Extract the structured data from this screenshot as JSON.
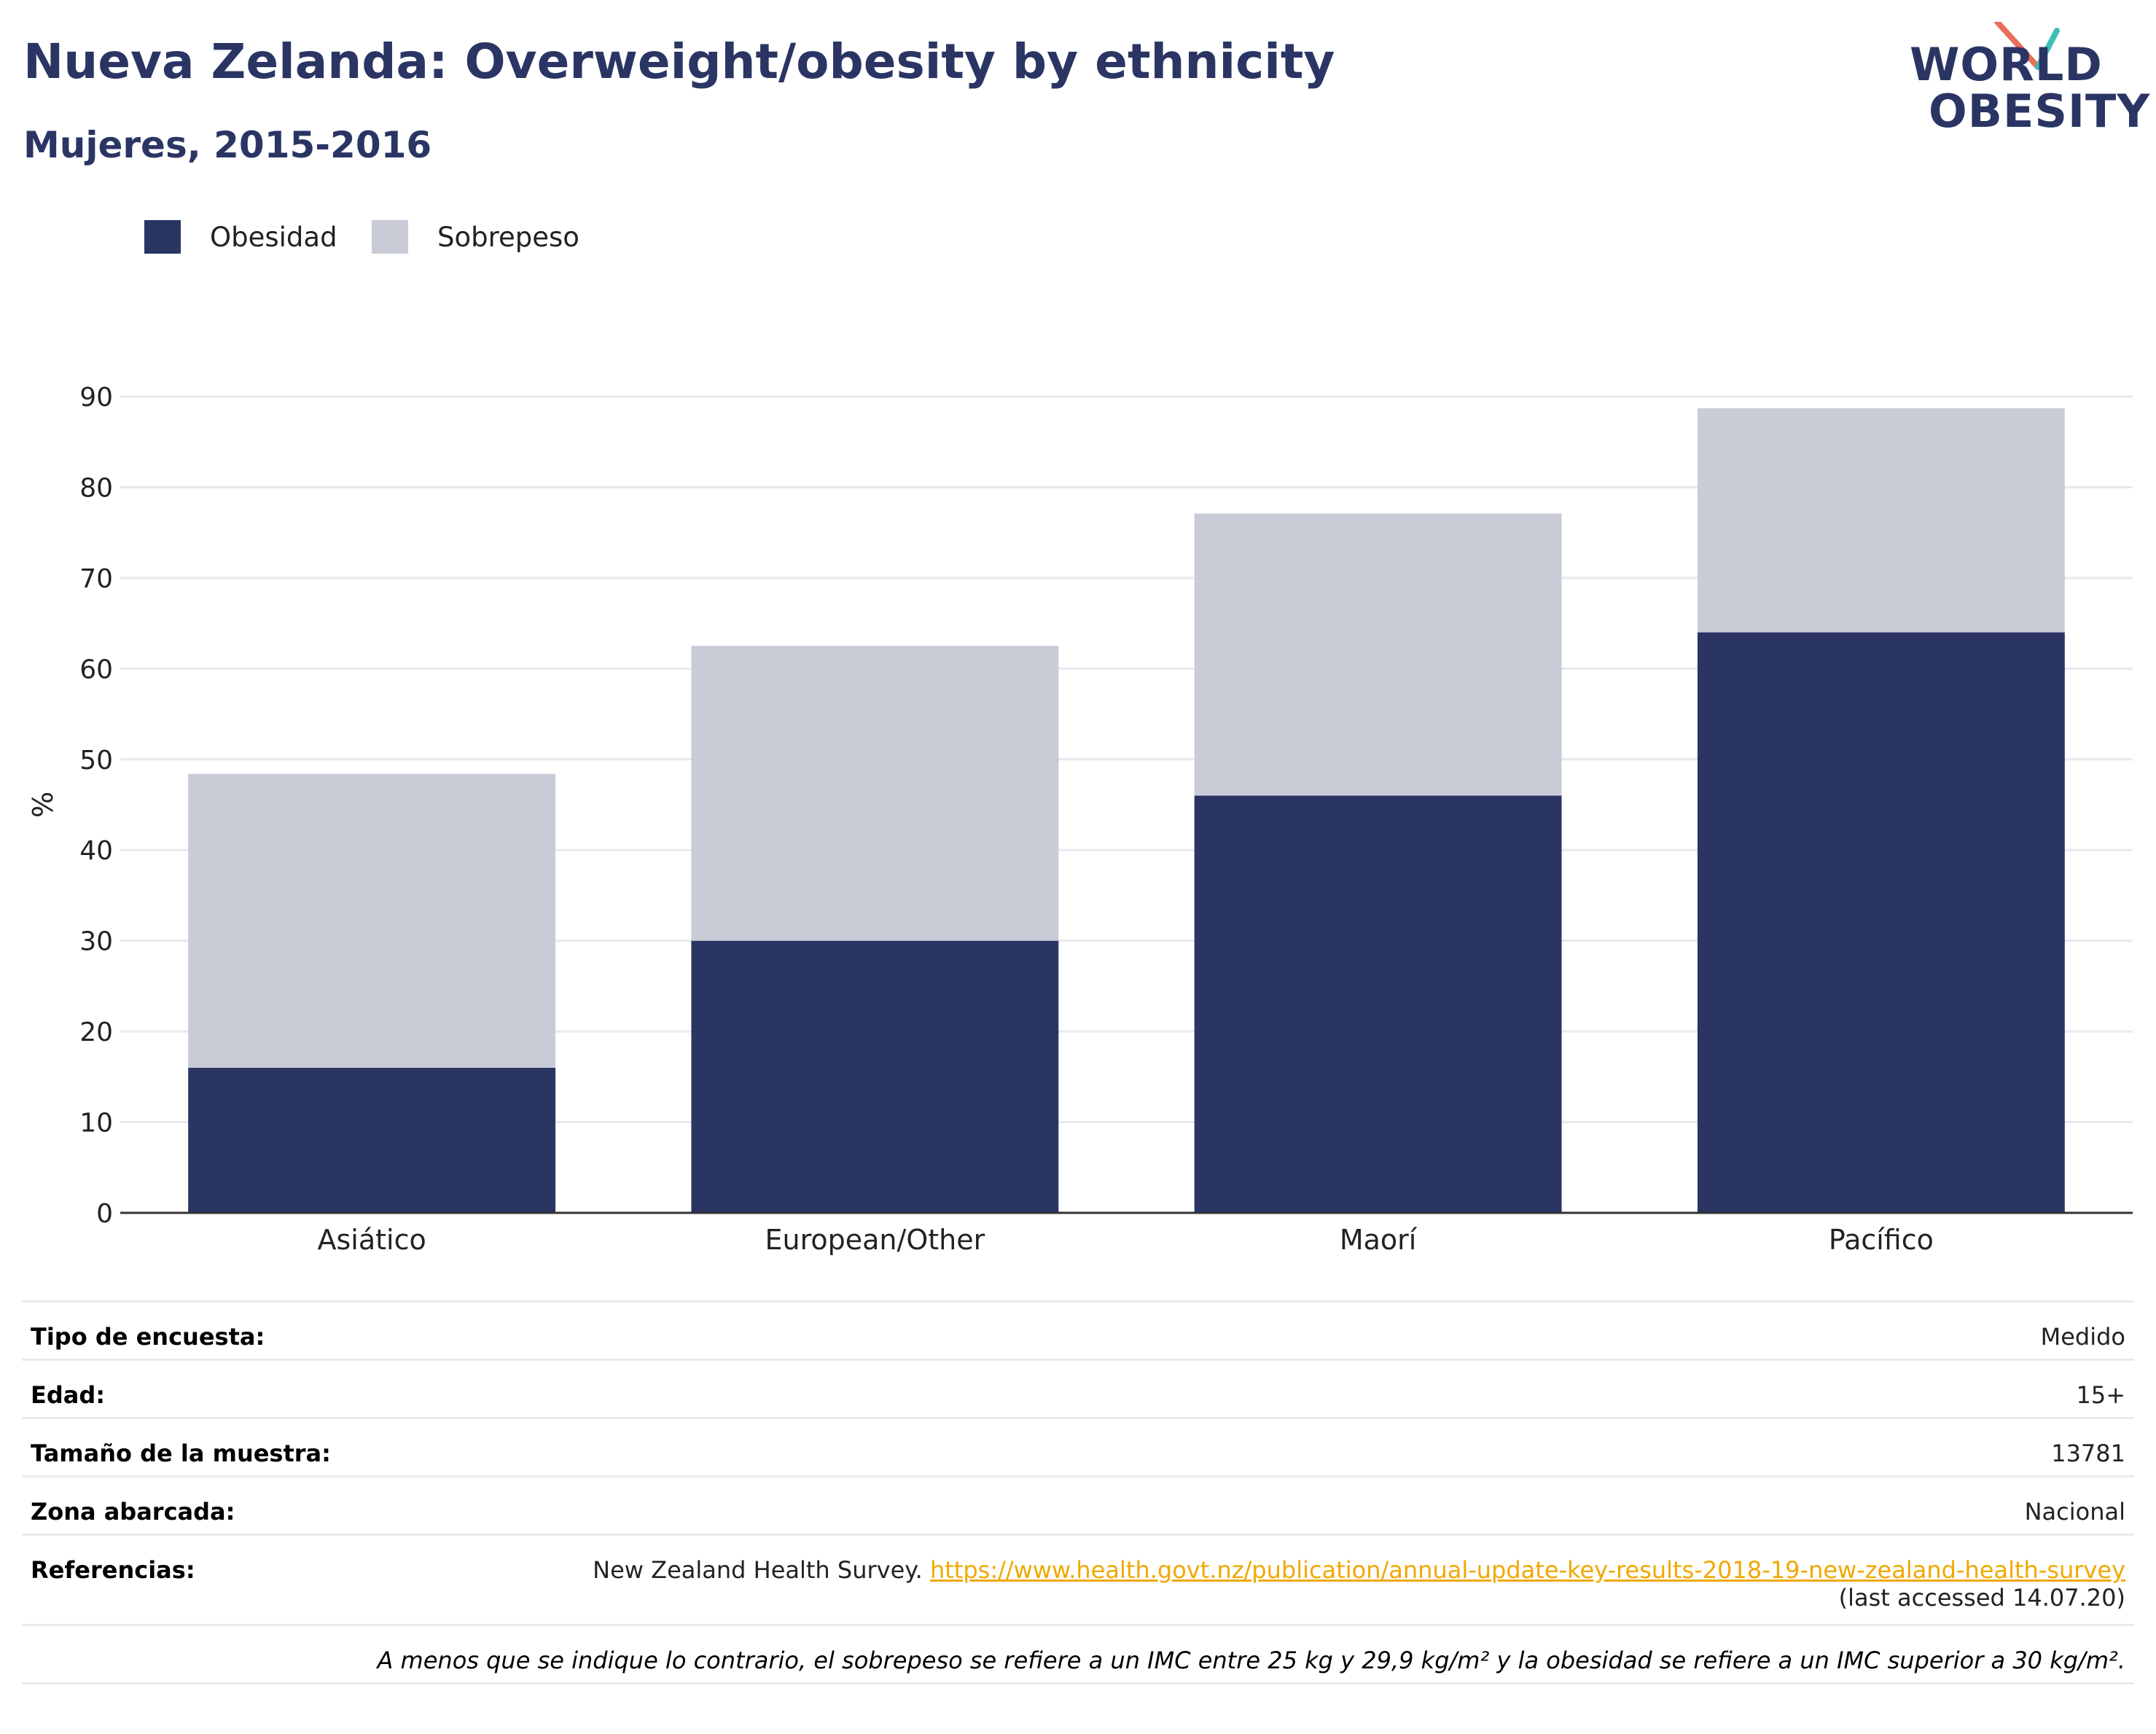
{
  "header": {
    "title": "Nueva Zelanda: Overweight/obesity by ethnicity",
    "subtitle": "Mujeres, 2015-2016"
  },
  "logo": {
    "line1": "WORLD",
    "line2": "OBESITY",
    "colors": {
      "text": "#2a3564",
      "accent_teal": "#3dbdb6",
      "accent_coral": "#e8705a"
    }
  },
  "colors": {
    "obesity": "#2a3564",
    "overweight": "#c9cbd7",
    "gridline": "#e8e8ee",
    "axis": "#333333",
    "link": "#f0a800"
  },
  "chart_data": {
    "type": "bar",
    "stacked": true,
    "categories": [
      "Asiático",
      "European/Other",
      "Maorí",
      "Pacífico"
    ],
    "series": [
      {
        "name": "Obesidad",
        "values": [
          16,
          30,
          46,
          64
        ]
      },
      {
        "name": "Sobrepeso",
        "values": [
          32.4,
          32.5,
          31.1,
          24.7
        ]
      }
    ],
    "totals": [
      48.4,
      62.5,
      77.1,
      88.7
    ],
    "ylabel": "%",
    "ylim": [
      0,
      90
    ],
    "yticks": [
      "0",
      "10",
      "20",
      "30",
      "40",
      "50",
      "60",
      "70",
      "80",
      "90"
    ],
    "grid": true,
    "legend_position": "top-left"
  },
  "meta": {
    "rows": [
      {
        "key": "Tipo de encuesta:",
        "value": "Medido"
      },
      {
        "key": "Edad:",
        "value": "15+"
      },
      {
        "key": "Tamaño de la muestra:",
        "value": "13781"
      },
      {
        "key": "Zona abarcada:",
        "value": "Nacional"
      }
    ],
    "references": {
      "key": "Referencias:",
      "source": "New Zealand Health Survey.",
      "url": "https://www.health.govt.nz/publication/annual-update-key-results-2018-19-new-zealand-health-survey",
      "accessed": "(last accessed 14.07.20)"
    },
    "footnote": "A menos que se indique lo contrario, el sobrepeso se refiere a un IMC entre 25 kg y 29,9 kg/m² y la obesidad se refiere a un IMC superior a 30 kg/m²."
  }
}
